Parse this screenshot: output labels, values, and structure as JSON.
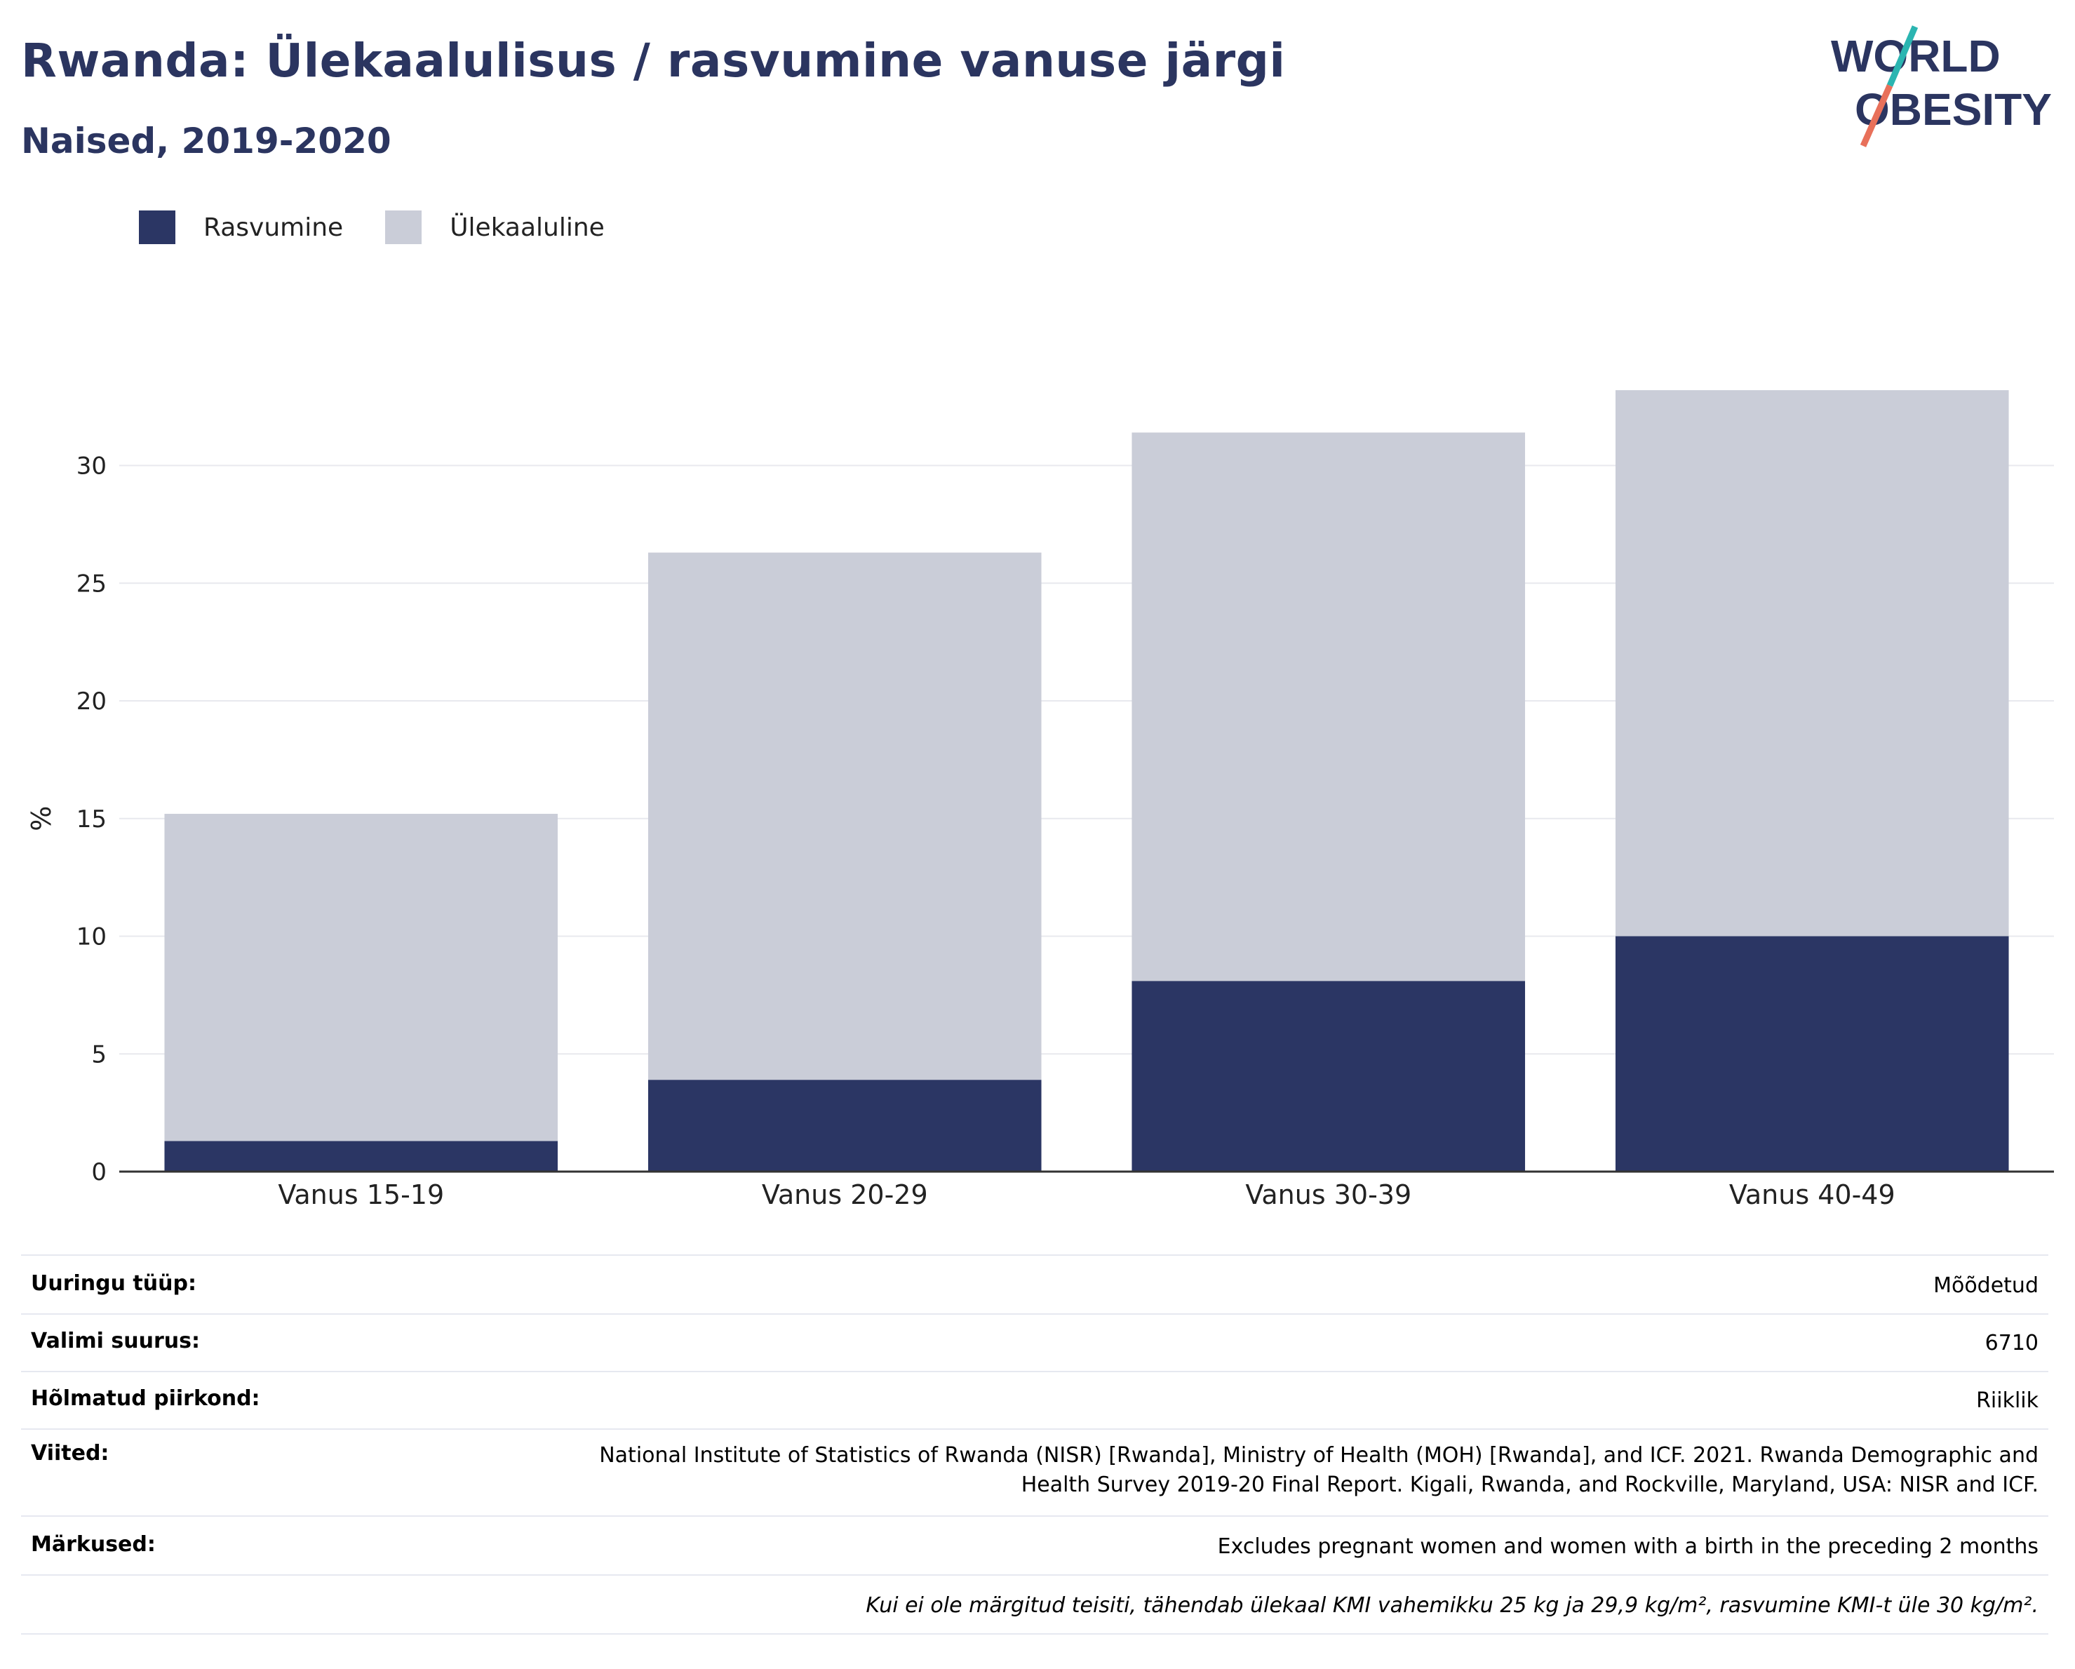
{
  "title": "Rwanda: Ülekaalulisus / rasvumine vanuse järgi",
  "subtitle": "Naised, 2019-2020",
  "logo": {
    "line1": "WORLD",
    "line2": "OBESITY"
  },
  "colors": {
    "obesity": "#2b3664",
    "overweight": "#cacdd8",
    "title": "#2b3560",
    "logo_teal": "#2bb5b1",
    "logo_red": "#e8705a"
  },
  "chart_data": {
    "type": "bar",
    "stacked": true,
    "ylabel": "%",
    "ylim": [
      0,
      33.5
    ],
    "yticks": [
      0,
      5,
      10,
      15,
      20,
      25,
      30
    ],
    "grid": true,
    "legend_position": "top-left",
    "categories": [
      "Vanus 15-19",
      "Vanus 20-29",
      "Vanus 30-39",
      "Vanus 40-49"
    ],
    "series": [
      {
        "name": "Rasvumine",
        "color": "#2b3664",
        "values": [
          1.3,
          3.9,
          8.1,
          10.0
        ]
      },
      {
        "name": "Ülekaaluline",
        "color": "#cacdd8",
        "values": [
          13.9,
          22.4,
          23.3,
          23.2
        ]
      }
    ]
  },
  "meta": {
    "rows": [
      {
        "key": "Uuringu tüüp:",
        "value": "Mõõdetud"
      },
      {
        "key": "Valimi suurus:",
        "value": "6710"
      },
      {
        "key": "Hõlmatud piirkond:",
        "value": "Riiklik"
      },
      {
        "key": "Viited:",
        "value": "National Institute of Statistics of Rwanda (NISR) [Rwanda], Ministry of Health (MOH) [Rwanda], and ICF. 2021. Rwanda Demographic and Health Survey 2019-20 Final Report. Kigali, Rwanda, and Rockville, Maryland, USA: NISR and ICF."
      },
      {
        "key": "Märkused:",
        "value": "Excludes pregnant women and women with a birth in the preceding 2 months"
      }
    ],
    "footnote": "Kui ei ole märgitud teisiti, tähendab ülekaal KMI vahemikku 25 kg ja 29,9 kg/m², rasvumine KMI-t üle 30 kg/m²."
  }
}
